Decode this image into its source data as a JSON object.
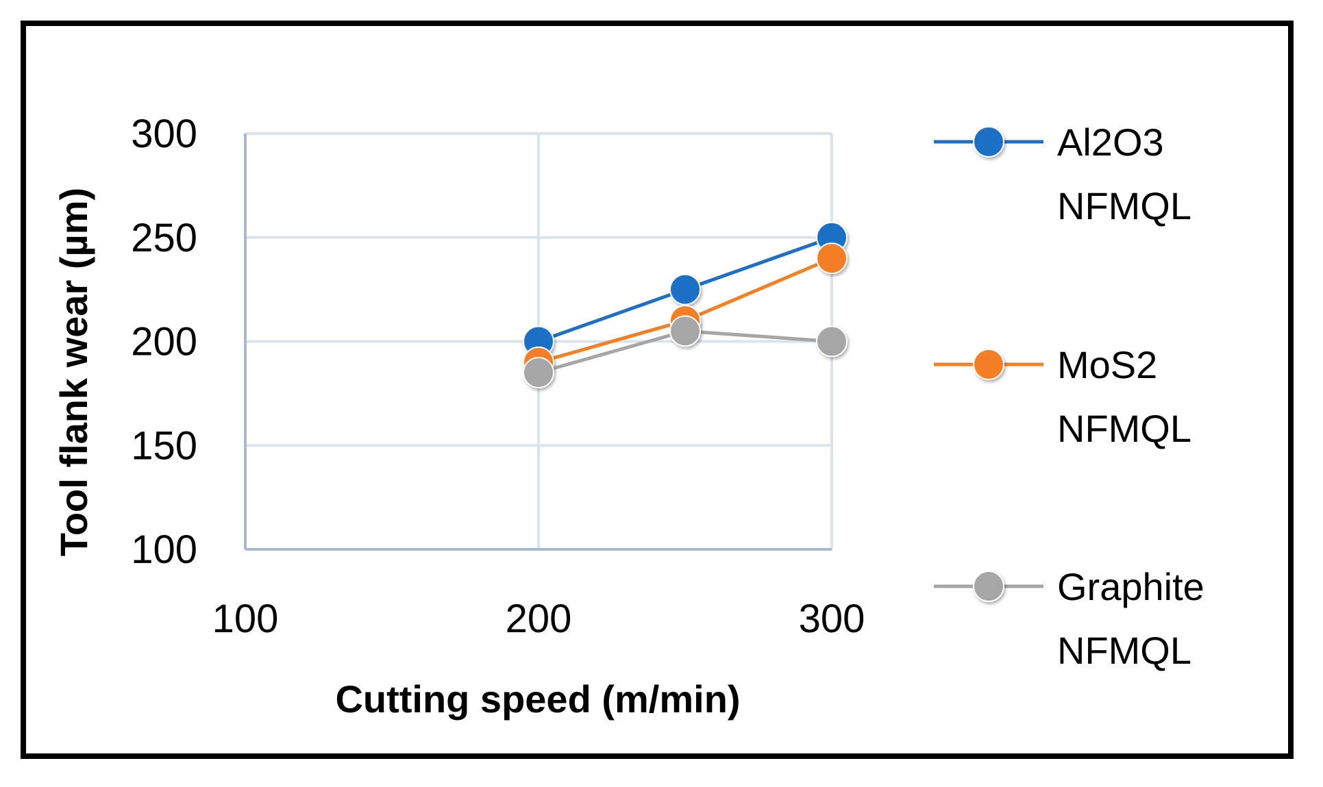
{
  "chart_data": {
    "type": "line",
    "title": "",
    "xlabel": "Cutting speed (m/min)",
    "ylabel": "Tool flank wear (µm)",
    "xlim": [
      100,
      300
    ],
    "ylim": [
      100,
      300
    ],
    "x_ticks": [
      "100",
      "200",
      "300"
    ],
    "y_ticks": [
      "100",
      "150",
      "200",
      "250",
      "300"
    ],
    "x_tick_values": [
      100,
      200,
      300
    ],
    "y_tick_values": [
      100,
      150,
      200,
      250,
      300
    ],
    "grid": true,
    "legend_position": "right",
    "x": [
      200,
      250,
      300
    ],
    "series": [
      {
        "name": "Al2O3 NFMQL",
        "legend_lines": [
          "Al2O3",
          "NFMQL"
        ],
        "color": "#1f6fc5",
        "values": [
          200,
          225,
          250
        ]
      },
      {
        "name": "MoS2 NFMQL",
        "legend_lines": [
          "MoS2",
          "NFMQL"
        ],
        "color": "#f57f25",
        "values": [
          190,
          210,
          240
        ]
      },
      {
        "name": "Graphite NFMQL",
        "legend_lines": [
          "Graphite",
          "NFMQL"
        ],
        "color": "#a6a6a6",
        "values": [
          185,
          205,
          200
        ]
      }
    ]
  }
}
